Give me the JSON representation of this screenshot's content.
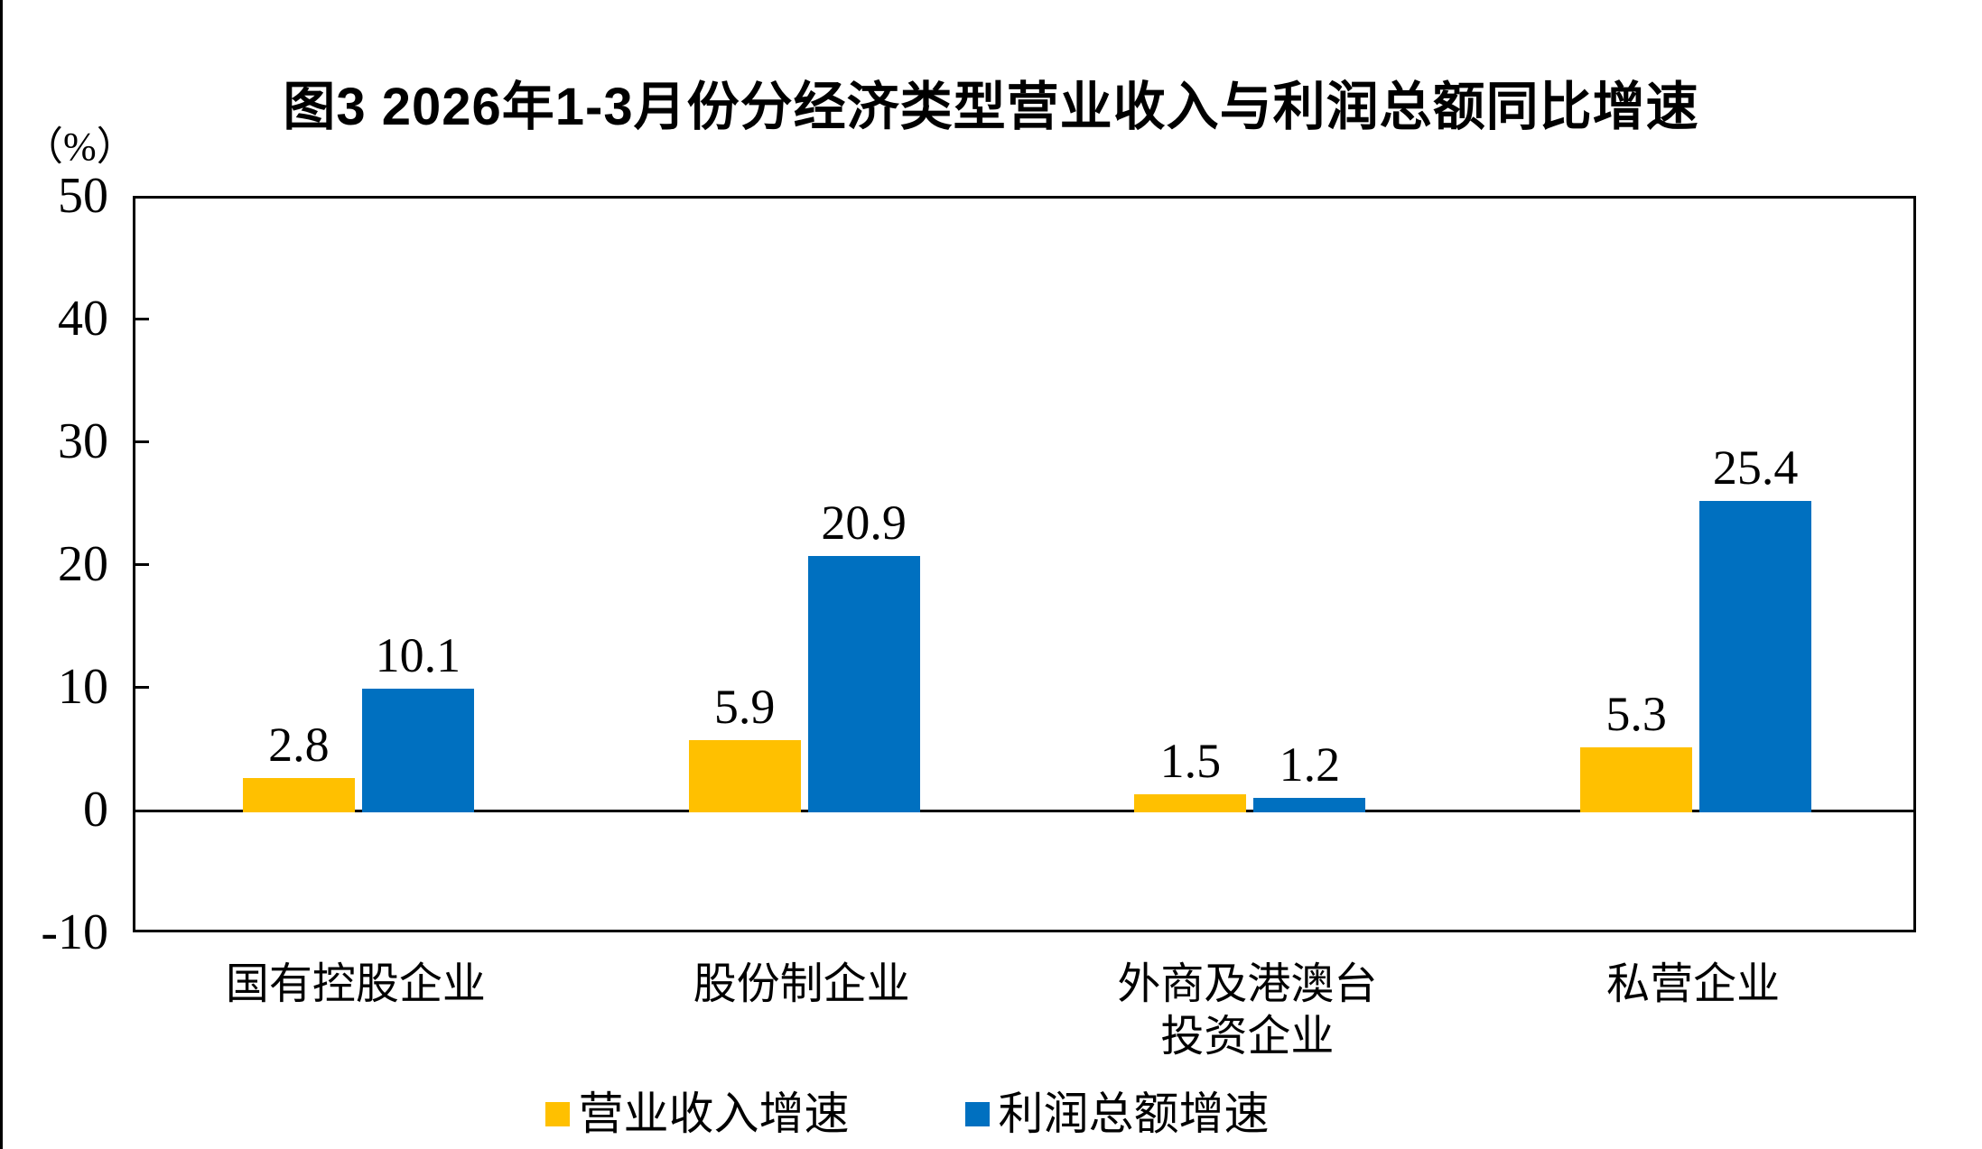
{
  "chart_data": {
    "type": "bar",
    "title": "图3 2026年1-3月份分经济类型营业收入与利润总额同比增速",
    "unit_label": "（%）",
    "categories": [
      "国有控股企业",
      "股份制企业",
      "外商及港澳台投资企业",
      "私营企业"
    ],
    "category_lines": [
      [
        "国有控股企业"
      ],
      [
        "股份制企业"
      ],
      [
        "外商及港澳台",
        "投资企业"
      ],
      [
        "私营企业"
      ]
    ],
    "series": [
      {
        "name": "营业收入增速",
        "color": "#FFC000",
        "values": [
          2.8,
          5.9,
          1.5,
          5.3
        ]
      },
      {
        "name": "利润总额增速",
        "color": "#0070C0",
        "values": [
          10.1,
          20.9,
          1.2,
          25.4
        ]
      }
    ],
    "y_ticks": [
      50,
      40,
      30,
      20,
      10,
      0,
      -10
    ],
    "ylim": [
      -10,
      50
    ],
    "grid": false,
    "legend_position": "bottom",
    "axis_color": "#000000",
    "background_color": "#FFFFFF"
  }
}
